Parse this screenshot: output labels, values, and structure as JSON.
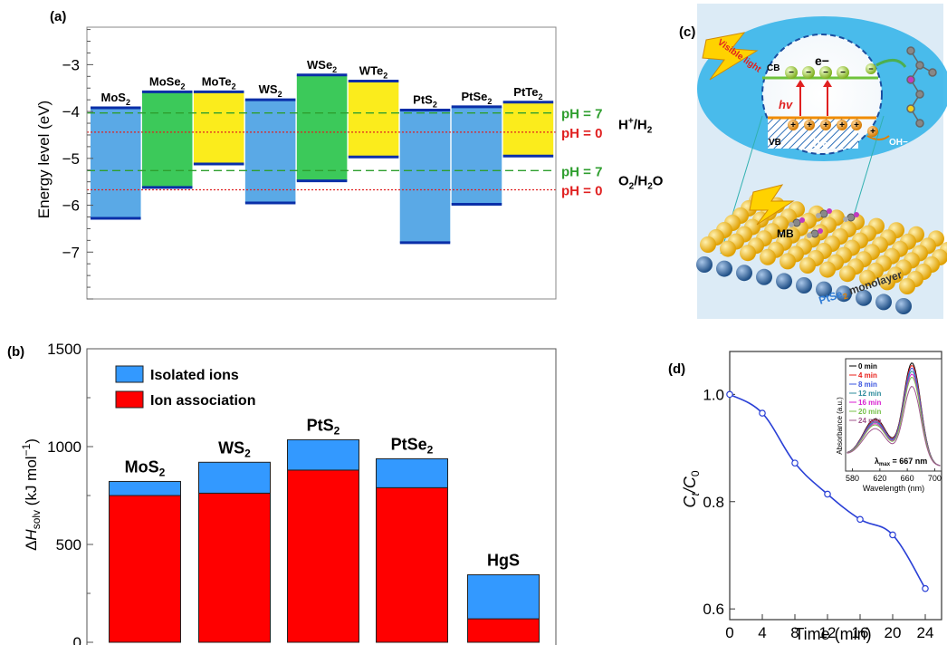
{
  "panel_labels": {
    "a": "(a)",
    "b": "(b)",
    "c": "(c)",
    "d": "(d)"
  },
  "chart_data": [
    {
      "panel": "(a)",
      "type": "bar",
      "ylabel": "Energy level (eV)",
      "ylim": [
        -8,
        -2.2
      ],
      "yticks": [
        -7,
        -6,
        -5,
        -4,
        -3
      ],
      "ytick_labels": [
        "−7",
        "−6",
        "−5",
        "−4",
        "−3"
      ],
      "categories": [
        {
          "base": "MoS",
          "sub": "2"
        },
        {
          "base": "MoSe",
          "sub": "2"
        },
        {
          "base": "MoTe",
          "sub": "2"
        },
        {
          "base": "WS",
          "sub": "2"
        },
        {
          "base": "WSe",
          "sub": "2"
        },
        {
          "base": "WTe",
          "sub": "2"
        },
        {
          "base": "PtS",
          "sub": "2"
        },
        {
          "base": "PtSe",
          "sub": "2"
        },
        {
          "base": "PtTe",
          "sub": "2"
        }
      ],
      "cbm": [
        -3.92,
        -3.58,
        -3.58,
        -3.75,
        -3.22,
        -3.35,
        -3.97,
        -3.9,
        -3.8
      ],
      "vbm": [
        -6.28,
        -5.62,
        -5.12,
        -5.95,
        -5.48,
        -4.97,
        -6.8,
        -5.98,
        -4.95
      ],
      "bar_colors": [
        "#5aa9e6",
        "#3cc95a",
        "#fbec1c",
        "#5aa9e6",
        "#3cc95a",
        "#fbec1c",
        "#5aa9e6",
        "#5aa9e6",
        "#fbec1c"
      ],
      "reference_lines": [
        {
          "label": "pH = 7",
          "value": -4.03,
          "color": "#2e9e2e",
          "style": "dashed"
        },
        {
          "label": "pH = 0",
          "value": -4.44,
          "color": "#e02020",
          "style": "dotted"
        },
        {
          "label": "pH = 7",
          "value": -5.26,
          "color": "#2e9e2e",
          "style": "dashed"
        },
        {
          "label": "pH = 0",
          "value": -5.67,
          "color": "#e02020",
          "style": "dotted"
        }
      ],
      "couple_labels": [
        {
          "base": "H",
          "sup": "+",
          "rest": "/H",
          "sub": "2"
        },
        {
          "base": "O",
          "sub": "2",
          "rest": "/H",
          "sub2": "2",
          "end": "O"
        }
      ]
    },
    {
      "panel": "(b)",
      "type": "bar",
      "stacked": true,
      "ylabel": {
        "prefix": "Δ",
        "italic": "H",
        "sub": "solv",
        "suffix": " (kJ mol",
        "sup": "−1",
        "close": ")"
      },
      "ylim": [
        0,
        1500
      ],
      "yticks": [
        0,
        500,
        1000,
        1500
      ],
      "categories": [
        {
          "base": "MoS",
          "sub": "2"
        },
        {
          "base": "WS",
          "sub": "2"
        },
        {
          "base": "PtS",
          "sub": "2"
        },
        {
          "base": "PtSe",
          "sub": "2"
        },
        {
          "base": "HgS",
          "sub": ""
        }
      ],
      "series": [
        {
          "name": "Ion association",
          "color": "#ff0000",
          "values": [
            750,
            762,
            880,
            790,
            120
          ]
        },
        {
          "name": "Isolated ions",
          "color": "#3399ff",
          "values": [
            72,
            158,
            155,
            148,
            225
          ]
        }
      ],
      "legend": "top-left"
    },
    {
      "panel": "(d)",
      "type": "scatter",
      "xlabel": "Time (min)",
      "ylabel": {
        "base": "C",
        "sub1": "t",
        "mid": "/C",
        "sub2": "0"
      },
      "xlim": [
        0,
        26
      ],
      "ylim": [
        0.58,
        1.08
      ],
      "xticks": [
        0,
        4,
        8,
        12,
        16,
        20,
        24
      ],
      "yticks": [
        0.6,
        0.8,
        1.0
      ],
      "ytick_labels": [
        "0.6",
        "0.8",
        "1.0"
      ],
      "x": [
        0,
        4,
        8,
        12,
        16,
        20,
        24
      ],
      "y": [
        1.0,
        0.965,
        0.872,
        0.814,
        0.767,
        0.738,
        0.638
      ],
      "fit_curve": true,
      "color": "#2a40d6",
      "inset": {
        "type": "line",
        "xlabel": "Wavelength (nm)",
        "ylabel": "Absorbance (a.u.)",
        "xlim": [
          570,
          710
        ],
        "xticks": [
          580,
          620,
          660,
          700
        ],
        "annotation": {
          "prefix": "λ",
          "sub": "max",
          "text": " = 667 nm"
        },
        "series": [
          {
            "name": "0 min",
            "color": "#000000",
            "peak": 1.0
          },
          {
            "name": "4 min",
            "color": "#e8211b",
            "peak": 0.975
          },
          {
            "name": "8 min",
            "color": "#3a54e0",
            "peak": 0.95
          },
          {
            "name": "12 min",
            "color": "#2e8c9c",
            "peak": 0.92
          },
          {
            "name": "16 min",
            "color": "#d81ed0",
            "peak": 0.89
          },
          {
            "name": "20 min",
            "color": "#77c04a",
            "peak": 0.86
          },
          {
            "name": "24 min",
            "color": "#a0568c",
            "peak": 0.77
          }
        ]
      }
    }
  ],
  "schematic": {
    "cb_label": "CB",
    "vb_label": "VB",
    "electron_label": "e−",
    "hole_label": "h+",
    "hv_label": "hv",
    "visible_light_label": "Visible light",
    "oh_label": "OH−",
    "mb_label": "MB",
    "monolayer_prefix": "PtSe",
    "monolayer_sub": "2",
    "monolayer_suffix": " monolayer"
  }
}
